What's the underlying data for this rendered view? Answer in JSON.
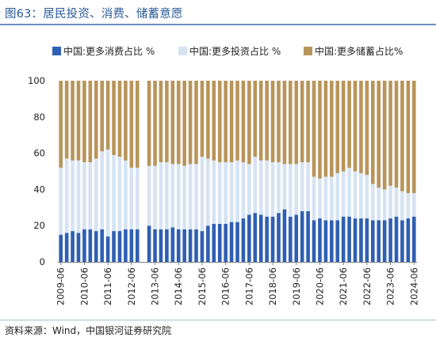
{
  "figure": {
    "title": "图63：居民投资、消费、储蓄意愿",
    "source": "资料来源：Wind，中国银河证券研究院"
  },
  "colors": {
    "consume": "#2f5fb3",
    "invest": "#d6e3f3",
    "save": "#b8955b",
    "title": "#2a5b96"
  },
  "chart_data": {
    "type": "bar",
    "stacked": true,
    "ylim": [
      0,
      100
    ],
    "yticks": [
      0,
      20,
      40,
      60,
      80,
      100
    ],
    "legend_position": "top",
    "grid": false,
    "xticks": [
      "2009-06",
      "2010-06",
      "2011-06",
      "2012-06",
      "2013-06",
      "2014-06",
      "2015-06",
      "2016-06",
      "2017-06",
      "2018-06",
      "2019-06",
      "2020-06",
      "2021-06",
      "2022-06",
      "2023-06",
      "2024-06"
    ],
    "categories": [
      "2009-06",
      "2009-09",
      "2009-12",
      "2010-03",
      "2010-06",
      "2010-09",
      "2010-12",
      "2011-03",
      "2011-06",
      "2011-09",
      "2011-12",
      "2012-03",
      "2012-06",
      "2012-09",
      "2012-12",
      "2013-03",
      "2013-06",
      "2013-09",
      "2013-12",
      "2014-03",
      "2014-06",
      "2014-09",
      "2014-12",
      "2015-03",
      "2015-06",
      "2015-09",
      "2015-12",
      "2016-03",
      "2016-06",
      "2016-09",
      "2016-12",
      "2017-03",
      "2017-06",
      "2017-09",
      "2017-12",
      "2018-03",
      "2018-06",
      "2018-09",
      "2018-12",
      "2019-03",
      "2019-06",
      "2019-09",
      "2019-12",
      "2020-03",
      "2020-06",
      "2020-09",
      "2020-12",
      "2021-03",
      "2021-06",
      "2021-09",
      "2021-12",
      "2022-03",
      "2022-06",
      "2022-09",
      "2022-12",
      "2023-03",
      "2023-06",
      "2023-09",
      "2023-12",
      "2024-03",
      "2024-06"
    ],
    "series": [
      {
        "name": "中国:更多消费占比 %",
        "values": [
          15,
          16,
          17,
          16,
          18,
          18,
          17,
          18,
          14,
          17,
          17,
          18,
          18,
          18,
          null,
          20,
          18,
          18,
          18,
          19,
          18,
          18,
          18,
          18,
          17,
          20,
          21,
          21,
          21,
          22,
          22,
          24,
          26,
          27,
          26,
          25,
          25,
          27,
          29,
          25,
          26,
          28,
          28,
          23,
          24,
          23,
          23,
          23,
          25,
          25,
          24,
          24,
          24,
          23,
          23,
          23,
          24,
          25,
          23,
          24,
          25
        ]
      },
      {
        "name": "中国:更多投资占比 %",
        "values": [
          37,
          41,
          39,
          40,
          37,
          37,
          40,
          43,
          48,
          42,
          41,
          38,
          34,
          34,
          null,
          33,
          35,
          37,
          37,
          35,
          36,
          35,
          36,
          36,
          41,
          37,
          35,
          34,
          34,
          33,
          34,
          31,
          28,
          31,
          30,
          31,
          30,
          28,
          25,
          29,
          28,
          27,
          27,
          24,
          22,
          24,
          24,
          26,
          25,
          27,
          26,
          25,
          24,
          20,
          18,
          17,
          18,
          16,
          16,
          14,
          13
        ]
      },
      {
        "name": "中国:更多储蓄占比%",
        "values": [
          48,
          43,
          44,
          44,
          45,
          45,
          43,
          39,
          38,
          41,
          42,
          44,
          48,
          48,
          null,
          47,
          47,
          45,
          45,
          46,
          46,
          47,
          46,
          46,
          42,
          43,
          44,
          45,
          45,
          45,
          44,
          45,
          46,
          42,
          44,
          44,
          45,
          45,
          46,
          46,
          46,
          45,
          45,
          53,
          54,
          53,
          53,
          51,
          50,
          48,
          50,
          51,
          52,
          57,
          59,
          60,
          58,
          59,
          61,
          62,
          62
        ]
      }
    ]
  }
}
